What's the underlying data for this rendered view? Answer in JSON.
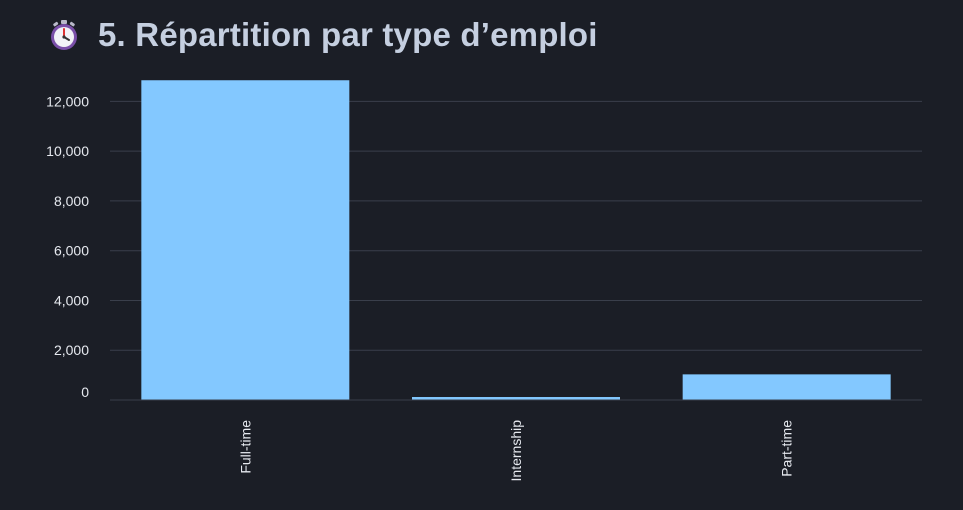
{
  "header": {
    "icon": "stopwatch-icon",
    "title": "5. Répartition par type d’emploi"
  },
  "colors": {
    "background": "#1b1e26",
    "bar": "#83c8ff",
    "grid": "#3a3f4b",
    "text": "#e6e9ef",
    "title": "#c5cfe0"
  },
  "chart_data": {
    "type": "bar",
    "categories": [
      "Full-time",
      "Internship",
      "Part-time"
    ],
    "values": [
      12850,
      120,
      1030
    ],
    "xlabel": "",
    "ylabel": "",
    "ylim": [
      0,
      12900
    ],
    "yticks": [
      0,
      2000,
      4000,
      6000,
      8000,
      10000,
      12000
    ],
    "ytick_labels": [
      "0",
      "2,000",
      "4,000",
      "6,000",
      "8,000",
      "10,000",
      "12,000"
    ],
    "grid": true,
    "legend": "none"
  }
}
